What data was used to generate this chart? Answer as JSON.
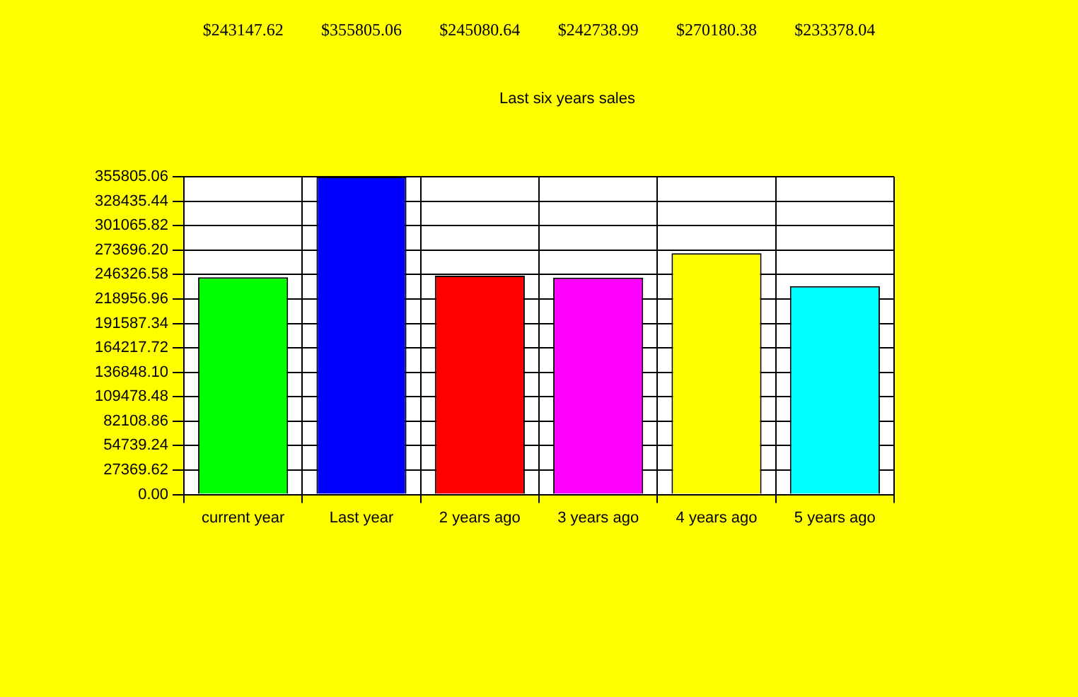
{
  "chart_data": {
    "type": "bar",
    "title": "Last six years sales",
    "categories": [
      "current year",
      "Last year",
      "2 years ago",
      "3 years ago",
      "4 years ago",
      "5 years ago"
    ],
    "values": [
      243147.62,
      355805.06,
      245080.64,
      242738.99,
      270180.38,
      233378.04
    ],
    "colors": [
      "#00ff00",
      "#0000ff",
      "#ff0000",
      "#ff00ff",
      "#ffff00",
      "#00ffff"
    ],
    "value_labels": [
      "$243147.62",
      "$355805.06",
      "$245080.64",
      "$242738.99",
      "$270180.38",
      "$233378.04"
    ],
    "ylim": [
      0,
      355805.06
    ],
    "yticks": [
      {
        "value": 0,
        "label": "0.00"
      },
      27369.62,
      54739.24,
      82108.86,
      109478.48,
      {
        "value": 136848.1,
        "label": "136848.10"
      },
      164217.72,
      191587.34,
      218956.96,
      246326.58,
      {
        "value": 273696.2,
        "label": "273696.20"
      },
      301065.82,
      328435.44,
      355805.06
    ],
    "grid": true
  }
}
